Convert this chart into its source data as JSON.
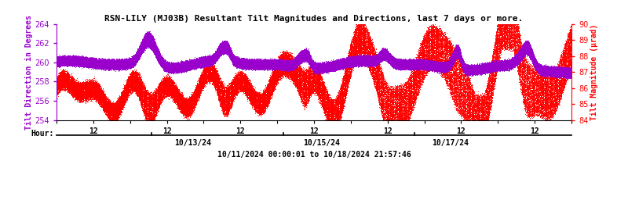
{
  "title": "RSN-LILY (MJ03B) Resultant Tilt Magnitudes and Directions, last 7 days or more.",
  "ylabel_left": "Tilt Direction in Degrees",
  "ylabel_right": "Tilt Magnitude (μrad)",
  "ylim_left": [
    254,
    264
  ],
  "ylim_right": [
    84,
    90
  ],
  "yticks_left": [
    254,
    256,
    258,
    260,
    262,
    264
  ],
  "yticks_right": [
    84,
    85,
    86,
    87,
    88,
    89,
    90
  ],
  "date_labels": [
    "10/13/24",
    "10/15/24",
    "10/17/24"
  ],
  "bottom_label": "10/11/2024 00:00:01 to 10/18/2024 21:57:46",
  "hour_ticks_label": "Hour:",
  "color_direction": "#9900cc",
  "color_magnitude": "#ff0000",
  "background_color": "#ffffff",
  "total_hours": 168,
  "seed": 42
}
